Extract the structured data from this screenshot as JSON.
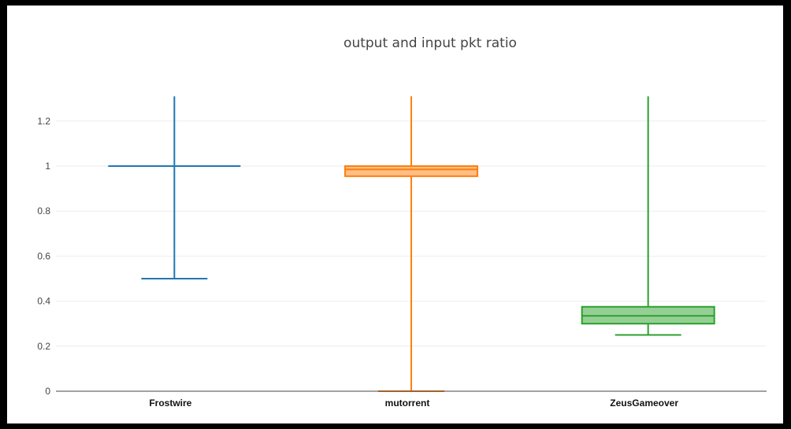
{
  "chart_data": {
    "type": "box",
    "title": "output and input pkt ratio",
    "xlabel": "",
    "ylabel": "",
    "ylim": [
      0,
      1.3
    ],
    "yticks": [
      "0",
      "0.2",
      "0.4",
      "0.6",
      "0.8",
      "1",
      "1.2"
    ],
    "grid": true,
    "categories": [
      "Frostwire",
      "mutorrent",
      "ZeusGameover"
    ],
    "series": [
      {
        "category": "Frostwire",
        "color": "#1f77b4",
        "min": 0.5,
        "q1": 1.0,
        "median": 1.0,
        "q3": 1.0,
        "max": 1.31
      },
      {
        "category": "mutorrent",
        "color": "#ff7f0e",
        "min": 0.0,
        "q1": 0.955,
        "median": 0.985,
        "q3": 1.0,
        "max": 1.31
      },
      {
        "category": "ZeusGameover",
        "color": "#2ca02c",
        "min": 0.25,
        "q1": 0.3,
        "median": 0.335,
        "q3": 0.375,
        "max": 1.31
      }
    ]
  }
}
